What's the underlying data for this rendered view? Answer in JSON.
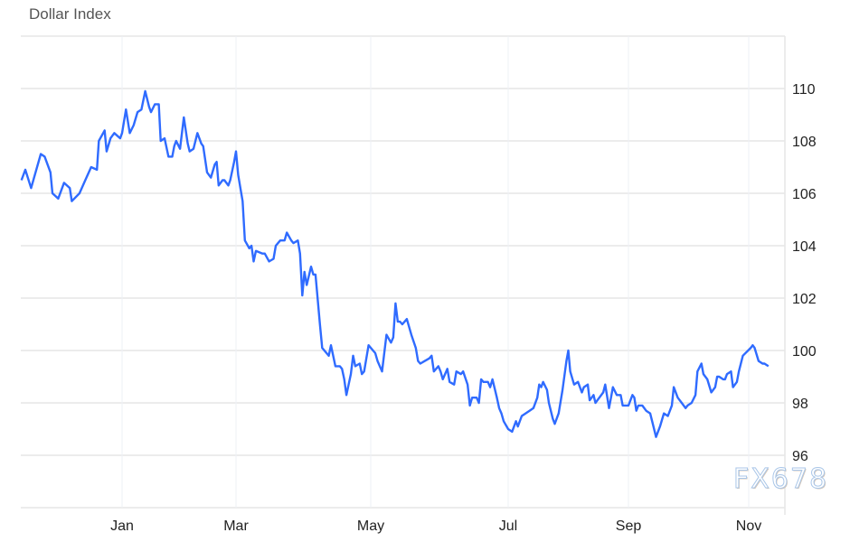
{
  "chart_data": {
    "type": "line",
    "title": "Dollar Index",
    "xlabel": "",
    "ylabel": "",
    "x_tick_labels": [
      "Jan",
      "Mar",
      "May",
      "Jul",
      "Sep",
      "Nov"
    ],
    "x_tick_dates": [
      "2025-01-01",
      "2025-03-01",
      "2025-05-01",
      "2025-07-01",
      "2025-09-01",
      "2025-11-01"
    ],
    "y_ticks": [
      96,
      98,
      100,
      102,
      104,
      106,
      108,
      110
    ],
    "ylim": [
      94,
      112
    ],
    "y_axis_side": "right",
    "grid": true,
    "legend": "none",
    "line_color": "#2f6bff",
    "series": [
      {
        "points": [
          [
            "2024-11-10",
            106.5
          ],
          [
            "2024-11-12",
            106.9
          ],
          [
            "2024-11-15",
            106.2
          ],
          [
            "2024-11-20",
            107.5
          ],
          [
            "2024-11-22",
            107.4
          ],
          [
            "2024-11-25",
            106.8
          ],
          [
            "2024-11-26",
            106.0
          ],
          [
            "2024-11-29",
            105.8
          ],
          [
            "2024-12-02",
            106.4
          ],
          [
            "2024-12-05",
            106.2
          ],
          [
            "2024-12-06",
            105.7
          ],
          [
            "2024-12-10",
            106.0
          ],
          [
            "2024-12-13",
            106.5
          ],
          [
            "2024-12-16",
            107.0
          ],
          [
            "2024-12-19",
            106.9
          ],
          [
            "2024-12-20",
            108.0
          ],
          [
            "2024-12-23",
            108.4
          ],
          [
            "2024-12-24",
            107.6
          ],
          [
            "2024-12-26",
            108.1
          ],
          [
            "2024-12-28",
            108.3
          ],
          [
            "2024-12-31",
            108.1
          ],
          [
            "2025-01-01",
            108.3
          ],
          [
            "2025-01-03",
            109.2
          ],
          [
            "2025-01-05",
            108.3
          ],
          [
            "2025-01-07",
            108.6
          ],
          [
            "2025-01-09",
            109.1
          ],
          [
            "2025-01-11",
            109.2
          ],
          [
            "2025-01-13",
            109.9
          ],
          [
            "2025-01-15",
            109.3
          ],
          [
            "2025-01-16",
            109.1
          ],
          [
            "2025-01-18",
            109.4
          ],
          [
            "2025-01-20",
            109.4
          ],
          [
            "2025-01-21",
            108.0
          ],
          [
            "2025-01-23",
            108.1
          ],
          [
            "2025-01-25",
            107.4
          ],
          [
            "2025-01-27",
            107.4
          ],
          [
            "2025-01-28",
            107.8
          ],
          [
            "2025-01-29",
            108.0
          ],
          [
            "2025-01-31",
            107.7
          ],
          [
            "2025-02-02",
            108.9
          ],
          [
            "2025-02-04",
            107.9
          ],
          [
            "2025-02-05",
            107.6
          ],
          [
            "2025-02-07",
            107.7
          ],
          [
            "2025-02-09",
            108.3
          ],
          [
            "2025-02-11",
            107.9
          ],
          [
            "2025-02-12",
            107.8
          ],
          [
            "2025-02-14",
            106.8
          ],
          [
            "2025-02-16",
            106.6
          ],
          [
            "2025-02-18",
            107.1
          ],
          [
            "2025-02-19",
            107.2
          ],
          [
            "2025-02-20",
            106.3
          ],
          [
            "2025-02-22",
            106.5
          ],
          [
            "2025-02-23",
            106.5
          ],
          [
            "2025-02-25",
            106.3
          ],
          [
            "2025-02-26",
            106.5
          ],
          [
            "2025-02-28",
            107.2
          ],
          [
            "2025-03-01",
            107.6
          ],
          [
            "2025-03-02",
            106.7
          ],
          [
            "2025-03-04",
            105.7
          ],
          [
            "2025-03-05",
            104.2
          ],
          [
            "2025-03-07",
            103.9
          ],
          [
            "2025-03-08",
            104.0
          ],
          [
            "2025-03-09",
            103.4
          ],
          [
            "2025-03-10",
            103.8
          ],
          [
            "2025-03-13",
            103.7
          ],
          [
            "2025-03-14",
            103.7
          ],
          [
            "2025-03-16",
            103.4
          ],
          [
            "2025-03-18",
            103.5
          ],
          [
            "2025-03-19",
            104.0
          ],
          [
            "2025-03-21",
            104.2
          ],
          [
            "2025-03-23",
            104.2
          ],
          [
            "2025-03-24",
            104.5
          ],
          [
            "2025-03-26",
            104.2
          ],
          [
            "2025-03-27",
            104.1
          ],
          [
            "2025-03-29",
            104.2
          ],
          [
            "2025-03-30",
            103.7
          ],
          [
            "2025-03-31",
            102.1
          ],
          [
            "2025-04-01",
            103.0
          ],
          [
            "2025-04-02",
            102.5
          ],
          [
            "2025-04-04",
            103.2
          ],
          [
            "2025-04-05",
            102.9
          ],
          [
            "2025-04-06",
            102.9
          ],
          [
            "2025-04-08",
            101.0
          ],
          [
            "2025-04-09",
            100.1
          ],
          [
            "2025-04-11",
            99.9
          ],
          [
            "2025-04-12",
            99.8
          ],
          [
            "2025-04-13",
            100.2
          ],
          [
            "2025-04-15",
            99.4
          ],
          [
            "2025-04-17",
            99.4
          ],
          [
            "2025-04-18",
            99.3
          ],
          [
            "2025-04-19",
            98.9
          ],
          [
            "2025-04-20",
            98.3
          ],
          [
            "2025-04-22",
            99.1
          ],
          [
            "2025-04-23",
            99.8
          ],
          [
            "2025-04-24",
            99.4
          ],
          [
            "2025-04-26",
            99.5
          ],
          [
            "2025-04-27",
            99.1
          ],
          [
            "2025-04-28",
            99.2
          ],
          [
            "2025-04-30",
            100.2
          ],
          [
            "2025-05-02",
            100.0
          ],
          [
            "2025-05-03",
            99.9
          ],
          [
            "2025-05-04",
            99.6
          ],
          [
            "2025-05-06",
            99.2
          ],
          [
            "2025-05-08",
            100.6
          ],
          [
            "2025-05-10",
            100.3
          ],
          [
            "2025-05-11",
            100.5
          ],
          [
            "2025-05-12",
            101.8
          ],
          [
            "2025-05-13",
            101.1
          ],
          [
            "2025-05-14",
            101.1
          ],
          [
            "2025-05-15",
            101.0
          ],
          [
            "2025-05-17",
            101.2
          ],
          [
            "2025-05-19",
            100.6
          ],
          [
            "2025-05-21",
            100.1
          ],
          [
            "2025-05-22",
            99.6
          ],
          [
            "2025-05-23",
            99.5
          ],
          [
            "2025-05-25",
            99.6
          ],
          [
            "2025-05-27",
            99.7
          ],
          [
            "2025-05-28",
            99.8
          ],
          [
            "2025-05-29",
            99.2
          ],
          [
            "2025-05-31",
            99.4
          ],
          [
            "2025-06-01",
            99.2
          ],
          [
            "2025-06-02",
            98.9
          ],
          [
            "2025-06-04",
            99.3
          ],
          [
            "2025-06-05",
            98.8
          ],
          [
            "2025-06-07",
            98.7
          ],
          [
            "2025-06-08",
            99.2
          ],
          [
            "2025-06-10",
            99.1
          ],
          [
            "2025-06-11",
            99.2
          ],
          [
            "2025-06-13",
            98.7
          ],
          [
            "2025-06-14",
            97.9
          ],
          [
            "2025-06-15",
            98.2
          ],
          [
            "2025-06-17",
            98.2
          ],
          [
            "2025-06-18",
            98.0
          ],
          [
            "2025-06-19",
            98.9
          ],
          [
            "2025-06-20",
            98.8
          ],
          [
            "2025-06-22",
            98.8
          ],
          [
            "2025-06-23",
            98.6
          ],
          [
            "2025-06-24",
            98.9
          ],
          [
            "2025-06-26",
            98.2
          ],
          [
            "2025-06-27",
            97.8
          ],
          [
            "2025-06-28",
            97.6
          ],
          [
            "2025-06-29",
            97.3
          ],
          [
            "2025-07-01",
            97.0
          ],
          [
            "2025-07-03",
            96.9
          ],
          [
            "2025-07-05",
            97.3
          ],
          [
            "2025-07-06",
            97.1
          ],
          [
            "2025-07-08",
            97.5
          ],
          [
            "2025-07-10",
            97.6
          ],
          [
            "2025-07-12",
            97.7
          ],
          [
            "2025-07-14",
            97.8
          ],
          [
            "2025-07-16",
            98.2
          ],
          [
            "2025-07-17",
            98.7
          ],
          [
            "2025-07-18",
            98.6
          ],
          [
            "2025-07-19",
            98.8
          ],
          [
            "2025-07-21",
            98.5
          ],
          [
            "2025-07-22",
            98.0
          ],
          [
            "2025-07-24",
            97.4
          ],
          [
            "2025-07-25",
            97.2
          ],
          [
            "2025-07-27",
            97.6
          ],
          [
            "2025-07-29",
            98.5
          ],
          [
            "2025-07-31",
            99.6
          ],
          [
            "2025-08-01",
            100.0
          ],
          [
            "2025-08-02",
            99.2
          ],
          [
            "2025-08-04",
            98.7
          ],
          [
            "2025-08-06",
            98.8
          ],
          [
            "2025-08-08",
            98.4
          ],
          [
            "2025-08-09",
            98.6
          ],
          [
            "2025-08-11",
            98.7
          ],
          [
            "2025-08-12",
            98.1
          ],
          [
            "2025-08-14",
            98.3
          ],
          [
            "2025-08-15",
            98.0
          ],
          [
            "2025-08-17",
            98.2
          ],
          [
            "2025-08-19",
            98.4
          ],
          [
            "2025-08-20",
            98.7
          ],
          [
            "2025-08-22",
            97.8
          ],
          [
            "2025-08-23",
            98.2
          ],
          [
            "2025-08-24",
            98.6
          ],
          [
            "2025-08-26",
            98.3
          ],
          [
            "2025-08-28",
            98.3
          ],
          [
            "2025-08-29",
            97.9
          ],
          [
            "2025-09-01",
            97.9
          ],
          [
            "2025-09-03",
            98.3
          ],
          [
            "2025-09-04",
            98.2
          ],
          [
            "2025-09-05",
            97.7
          ],
          [
            "2025-09-06",
            97.9
          ],
          [
            "2025-09-08",
            97.9
          ],
          [
            "2025-09-10",
            97.7
          ],
          [
            "2025-09-12",
            97.6
          ],
          [
            "2025-09-13",
            97.3
          ],
          [
            "2025-09-15",
            96.7
          ],
          [
            "2025-09-17",
            97.1
          ],
          [
            "2025-09-19",
            97.6
          ],
          [
            "2025-09-21",
            97.5
          ],
          [
            "2025-09-23",
            97.9
          ],
          [
            "2025-09-24",
            98.6
          ],
          [
            "2025-09-26",
            98.2
          ],
          [
            "2025-09-28",
            98.0
          ],
          [
            "2025-09-30",
            97.8
          ],
          [
            "2025-10-01",
            97.9
          ],
          [
            "2025-10-03",
            98.0
          ],
          [
            "2025-10-05",
            98.3
          ],
          [
            "2025-10-06",
            99.2
          ],
          [
            "2025-10-08",
            99.5
          ],
          [
            "2025-10-09",
            99.1
          ],
          [
            "2025-10-11",
            98.9
          ],
          [
            "2025-10-13",
            98.4
          ],
          [
            "2025-10-15",
            98.6
          ],
          [
            "2025-10-16",
            99.0
          ],
          [
            "2025-10-17",
            99.0
          ],
          [
            "2025-10-19",
            98.9
          ],
          [
            "2025-10-20",
            98.9
          ],
          [
            "2025-10-21",
            99.1
          ],
          [
            "2025-10-23",
            99.2
          ],
          [
            "2025-10-24",
            98.6
          ],
          [
            "2025-10-26",
            98.8
          ],
          [
            "2025-10-27",
            99.2
          ],
          [
            "2025-10-29",
            99.8
          ],
          [
            "2025-11-02",
            100.1
          ],
          [
            "2025-11-03",
            100.2
          ],
          [
            "2025-11-04",
            100.1
          ],
          [
            "2025-11-06",
            99.6
          ],
          [
            "2025-11-08",
            99.5
          ],
          [
            "2025-11-09",
            99.5
          ],
          [
            "2025-11-11",
            99.4
          ]
        ]
      }
    ]
  },
  "watermark": "FX678"
}
